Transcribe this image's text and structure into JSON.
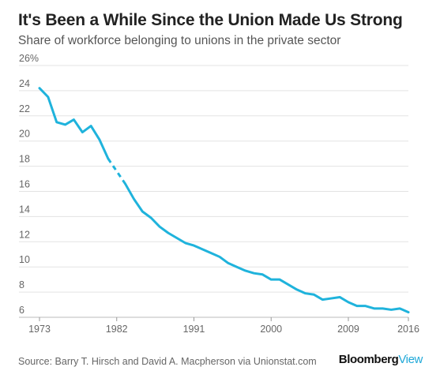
{
  "header": {
    "title": "It's Been a While Since the Union Made Us Strong",
    "subtitle": "Share of workforce belonging to unions in the private sector"
  },
  "footer": {
    "source": "Source: Barry T. Hirsch and David A. Macpherson via Unionstat.com",
    "brand_main": "Bloomberg",
    "brand_suffix": "View"
  },
  "colors": {
    "line": "#1fb3dc",
    "grid": "#e3e3e3",
    "axis_text": "#666666",
    "brand_accent": "#1fa8d8"
  },
  "chart_data": {
    "type": "line",
    "title": "It's Been a While Since the Union Made Us Strong",
    "subtitle": "Share of workforce belonging to unions in the private sector",
    "xlim": [
      1973,
      2016
    ],
    "ylim": [
      6,
      26
    ],
    "x_ticks": [
      1973,
      1982,
      1991,
      2000,
      2009,
      2016
    ],
    "x_tick_labels": [
      "1973",
      "1982",
      "1991",
      "2000",
      "2009",
      "2016"
    ],
    "y_ticks": [
      6,
      8,
      10,
      12,
      14,
      16,
      18,
      20,
      22,
      24,
      26
    ],
    "y_tick_labels": [
      "6",
      "8",
      "10",
      "12",
      "14",
      "16",
      "18",
      "20",
      "22",
      "24",
      "26%"
    ],
    "grid": true,
    "series": [
      {
        "style": "solid",
        "x": [
          1973,
          1974,
          1975,
          1976,
          1977,
          1978,
          1979,
          1980,
          1981
        ],
        "y": [
          24.2,
          23.5,
          21.5,
          21.3,
          21.7,
          20.7,
          21.2,
          20.1,
          18.6
        ]
      },
      {
        "style": "dashed",
        "x": [
          1981,
          1983
        ],
        "y": [
          18.6,
          16.6
        ]
      },
      {
        "style": "solid",
        "x": [
          1983,
          1984,
          1985,
          1986,
          1987,
          1988,
          1989,
          1990,
          1991,
          1992,
          1993,
          1994,
          1995,
          1996,
          1997,
          1998,
          1999,
          2000,
          2001,
          2002,
          2003,
          2004,
          2005,
          2006,
          2007,
          2008,
          2009,
          2010,
          2011,
          2012,
          2013,
          2014,
          2015,
          2016
        ],
        "y": [
          16.6,
          15.4,
          14.4,
          13.9,
          13.2,
          12.7,
          12.3,
          11.9,
          11.7,
          11.4,
          11.1,
          10.8,
          10.3,
          10.0,
          9.7,
          9.5,
          9.4,
          9.0,
          9.0,
          8.6,
          8.2,
          7.9,
          7.8,
          7.4,
          7.5,
          7.6,
          7.2,
          6.9,
          6.9,
          6.7,
          6.7,
          6.6,
          6.7,
          6.4
        ]
      }
    ]
  }
}
